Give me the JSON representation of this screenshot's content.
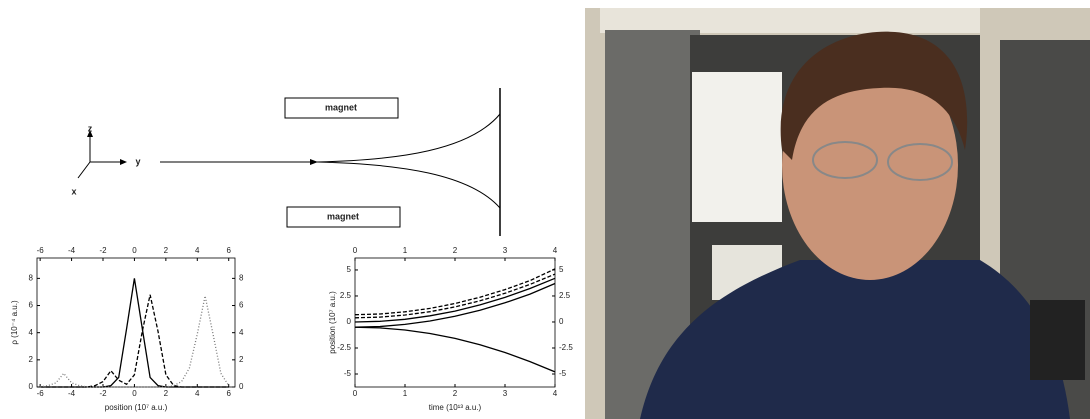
{
  "diagram": {
    "axis_z": "z",
    "axis_y": "y",
    "axis_x": "x",
    "magnet_top": "magnet",
    "magnet_bottom": "magnet"
  },
  "chart_data": [
    {
      "type": "line",
      "xlabel": "position (10⁷ a.u.)",
      "ylabel": "ρ (10⁻⁴ a.u.)",
      "x": [
        -6,
        -5.5,
        -5,
        -4.5,
        -4,
        -3.5,
        -3,
        -2.5,
        -2,
        -1.5,
        -1,
        -0.5,
        0,
        0.5,
        1,
        1.5,
        2,
        2.5,
        3,
        3.5,
        4,
        4.5,
        5,
        5.5,
        6
      ],
      "series": [
        {
          "style": "solid",
          "color": "#000000",
          "values": [
            0,
            0,
            0,
            0,
            0,
            0,
            0,
            0,
            0,
            0.1,
            0.7,
            4.3,
            8,
            4.3,
            0.7,
            0.1,
            0,
            0,
            0,
            0,
            0,
            0,
            0,
            0,
            0
          ]
        },
        {
          "style": "dashed",
          "color": "#000000",
          "values": [
            0,
            0,
            0,
            0,
            0,
            0,
            0,
            0.1,
            0.4,
            1.2,
            0.5,
            0.2,
            0.9,
            4.1,
            6.8,
            4.1,
            0.9,
            0.1,
            0,
            0,
            0,
            0,
            0,
            0,
            0
          ]
        },
        {
          "style": "dotted",
          "color": "#777777",
          "values": [
            0,
            0.1,
            0.3,
            1,
            0.3,
            0.1,
            0,
            0,
            0,
            0,
            0,
            0,
            0,
            0,
            0,
            0,
            0,
            0.1,
            0.4,
            1.4,
            3.9,
            6.7,
            3.9,
            1,
            0.1
          ]
        }
      ],
      "xlim": [
        -6.2,
        6.4
      ],
      "xticks": [
        -6,
        -4,
        -2,
        0,
        2,
        4,
        6
      ],
      "ylim": [
        0,
        9.5
      ],
      "yticks": [
        0,
        2,
        4,
        6,
        8
      ]
    },
    {
      "type": "line",
      "xlabel": "time (10¹³ a.u.)",
      "ylabel": "position (10⁷ a.u.)",
      "x": [
        0,
        0.5,
        1,
        1.5,
        2,
        2.5,
        3,
        3.5,
        4
      ],
      "series": [
        {
          "style": "solid",
          "color": "#000000",
          "values": [
            -0.5,
            -0.43,
            -0.23,
            0.09,
            0.55,
            1.13,
            1.84,
            2.68,
            3.7
          ]
        },
        {
          "style": "solid",
          "color": "#000000",
          "values": [
            0,
            0.07,
            0.26,
            0.59,
            1.05,
            1.64,
            2.36,
            3.22,
            4.2
          ]
        },
        {
          "style": "dashed",
          "color": "#000000",
          "values": [
            0.4,
            0.47,
            0.67,
            0.99,
            1.45,
            2.04,
            2.76,
            3.61,
            4.6
          ]
        },
        {
          "style": "dashed",
          "color": "#000000",
          "values": [
            0.7,
            0.77,
            0.98,
            1.31,
            1.78,
            2.38,
            3.11,
            3.98,
            5.1
          ]
        },
        {
          "style": "solid",
          "color": "#000000",
          "values": [
            -0.5,
            -0.57,
            -0.77,
            -1.11,
            -1.58,
            -2.19,
            -2.93,
            -3.81,
            -4.8
          ]
        }
      ],
      "xlim": [
        0,
        4
      ],
      "xticks": [
        0,
        1,
        2,
        3,
        4
      ],
      "ylim": [
        -6.25,
        6.15
      ],
      "yticks": [
        -5,
        -2.5,
        0,
        2.5,
        5
      ]
    }
  ]
}
